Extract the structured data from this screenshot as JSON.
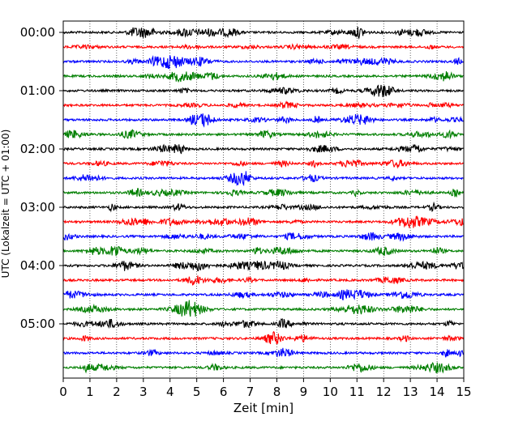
{
  "chart_data": {
    "type": "line",
    "title": "",
    "xlabel": "Zeit  [min]",
    "ylabel": "UTC (Lokalzeit = UTC + 01:00)",
    "xlim": [
      0,
      15
    ],
    "x_ticks": [
      "0",
      "1",
      "2",
      "3",
      "4",
      "5",
      "6",
      "7",
      "8",
      "9",
      "10",
      "11",
      "12",
      "13",
      "14",
      "15"
    ],
    "y_tick_labels": [
      "00:00",
      "01:00",
      "02:00",
      "03:00",
      "04:00",
      "05:00"
    ],
    "trace_interval_min": 15,
    "trace_count": 24,
    "trace_colors": [
      "#000000",
      "#ff0000",
      "#0000ff",
      "#007f00"
    ],
    "grid": "vertical dotted at every minute",
    "legend": "none"
  }
}
